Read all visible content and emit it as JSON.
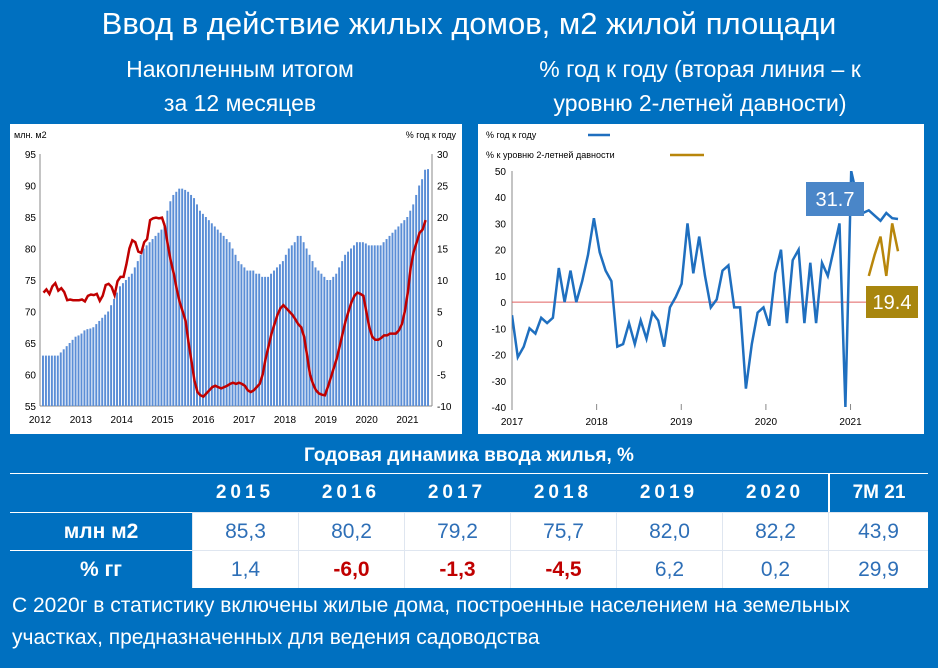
{
  "title": "Ввод в действие жилых домов, м2 жилой площади",
  "subtitle_left": [
    "Накопленным итогом",
    "за 12 месяцев"
  ],
  "subtitle_right": [
    "% год к году (вторая линия – к",
    "уровню 2-летней давности)"
  ],
  "colors": {
    "blue_bg": "#0070c0",
    "bar": "#5b8ed6",
    "red_line": "#c00000",
    "blue_line": "#1f6fbf",
    "gold_line": "#b8860b",
    "red_text": "#c00000",
    "value_blue": "#2e6fb7"
  },
  "chart_data": [
    {
      "type": "bar+line",
      "left_axis_label": "млн. м2",
      "right_axis_label": "% год к году",
      "ylim_left": [
        55,
        95
      ],
      "yticks_left": [
        55,
        60,
        65,
        70,
        75,
        80,
        85,
        90,
        95
      ],
      "ylim_right": [
        -10,
        30
      ],
      "yticks_right": [
        -10,
        -5,
        0,
        5,
        10,
        15,
        20,
        25,
        30
      ],
      "x_labels": [
        "2012",
        "2013",
        "2014",
        "2015",
        "2016",
        "2017",
        "2018",
        "2019",
        "2020",
        "2021"
      ],
      "x_start": 2012.0,
      "x_end": 2021.6,
      "series": [
        {
          "kind": "bars",
          "axis": "left",
          "values": [
            63,
            63,
            63,
            63,
            63,
            63,
            63.5,
            64,
            64.5,
            65,
            65.5,
            66,
            66.2,
            66.5,
            67,
            67.2,
            67.3,
            67.5,
            68,
            68.5,
            69,
            69.5,
            70,
            71,
            72,
            73,
            74,
            74.5,
            75,
            75.5,
            76,
            77,
            78,
            79,
            80,
            80.5,
            81,
            81.5,
            82,
            82.5,
            83,
            84,
            86,
            87.5,
            88.5,
            89,
            89.5,
            89.5,
            89.3,
            89,
            88.5,
            88,
            87,
            86,
            85.5,
            85,
            84.5,
            84,
            83.5,
            83,
            82.5,
            82,
            81.5,
            81,
            80,
            79,
            78,
            77.5,
            77,
            76.5,
            76.5,
            76.5,
            76,
            76,
            75.5,
            75.5,
            75.5,
            76,
            76.5,
            77,
            77.5,
            78,
            79,
            80,
            80.5,
            81,
            82,
            82,
            81,
            80,
            79,
            78,
            77,
            76.5,
            76,
            75.5,
            75,
            75,
            75.5,
            76,
            77,
            78,
            79,
            79.5,
            80,
            80.5,
            81,
            81,
            81,
            80.8,
            80.5,
            80.5,
            80.5,
            80.5,
            80.5,
            81,
            81.5,
            82,
            82.5,
            83,
            83.5,
            84,
            84.5,
            85,
            86,
            87,
            88.5,
            90,
            91,
            92.5,
            92.6
          ]
        },
        {
          "kind": "line",
          "axis": "right",
          "values": [
            8,
            8.5,
            7.8,
            9,
            9.5,
            8.3,
            8.7,
            8.1,
            6.8,
            6.9,
            6.8,
            6.8,
            6.8,
            6.9,
            6.6,
            7.5,
            7.7,
            7.6,
            7.8,
            6.7,
            7.5,
            9.2,
            9.4,
            8.9,
            7.6,
            9.8,
            10.5,
            10.5,
            12.5,
            15,
            16.3,
            16,
            14.5,
            14.3,
            16,
            16.5,
            19.5,
            19.8,
            19.9,
            19.8,
            19.9,
            18.5,
            15.5,
            13,
            11,
            8.5,
            6.5,
            5,
            3.5,
            0,
            -3,
            -6,
            -7.8,
            -8.3,
            -8.5,
            -8,
            -7.5,
            -7,
            -6.8,
            -7,
            -7.2,
            -7,
            -6.8,
            -6.5,
            -6.3,
            -6.5,
            -6.3,
            -6.5,
            -6.8,
            -7.5,
            -7.8,
            -7.5,
            -7,
            -6.5,
            -5,
            -2.5,
            -0.5,
            1.5,
            3,
            4.5,
            5.5,
            6,
            5.5,
            5,
            4.5,
            3.8,
            3,
            2.5,
            1,
            -2,
            -5,
            -6.5,
            -7.5,
            -8,
            -8.2,
            -8.3,
            -7,
            -5.5,
            -4,
            -2.5,
            -0.5,
            1.5,
            3.5,
            5,
            6.5,
            7.5,
            8,
            7.8,
            7.5,
            5,
            2.5,
            1,
            0.5,
            0.5,
            0.8,
            1.2,
            1.2,
            1.5,
            1.5,
            1.5,
            2,
            3,
            5,
            8,
            12,
            14.5,
            16,
            17.5,
            18,
            19.5
          ]
        }
      ]
    },
    {
      "type": "line",
      "legend": [
        "% год к году",
        "% к уровню 2-летней давности"
      ],
      "ylim": [
        -40,
        50
      ],
      "yticks": [
        -40,
        -30,
        -20,
        -10,
        0,
        10,
        20,
        30,
        40,
        50
      ],
      "x_labels": [
        "2017",
        "2018",
        "2019",
        "2020",
        "2021"
      ],
      "x_start": 2017.0,
      "x_end": 2021.75,
      "series": [
        {
          "name": "% год к году",
          "values": [
            -5,
            -21,
            -17,
            -10,
            -12,
            -6,
            -8,
            -6,
            13,
            0,
            12,
            0,
            8,
            18,
            32,
            19,
            12,
            8,
            -17,
            -16,
            -8,
            -16,
            -7,
            -14,
            -4,
            -7,
            -17,
            -2,
            2,
            7,
            30,
            11,
            25,
            10,
            -2,
            1,
            12,
            14,
            -2,
            -2,
            -33,
            -16,
            -4,
            -2,
            -9,
            11,
            20,
            -8,
            16,
            20,
            -8,
            15,
            -8,
            15,
            10,
            20,
            30,
            -40,
            50,
            40,
            34,
            35,
            33,
            31,
            34,
            32,
            31.7
          ]
        },
        {
          "name": "% к уровню 2-летней давности",
          "values": [
            10,
            18,
            25,
            10,
            30,
            19.4
          ]
        }
      ],
      "data_labels": [
        "31.7",
        "19.4"
      ]
    }
  ],
  "table": {
    "header": "Годовая динамика ввода жилья, %",
    "years": [
      "2015",
      "2016",
      "2017",
      "2018",
      "2019",
      "2020",
      "7M 21"
    ],
    "rows": [
      {
        "label": "млн м2",
        "values": [
          "85,3",
          "80,2",
          "79,2",
          "75,7",
          "82,0",
          "82,2",
          "43,9"
        ]
      },
      {
        "label": "% гг",
        "values": [
          "1,4",
          "-6,0",
          "-1,3",
          "-4,5",
          "6,2",
          "0,2",
          "29,9"
        ],
        "negative": [
          false,
          true,
          true,
          true,
          false,
          false,
          false
        ]
      }
    ]
  },
  "footer": "С 2020г в статистику включены жилые дома, построенные населением на земельных участках, предназначенных для ведения садоводства"
}
